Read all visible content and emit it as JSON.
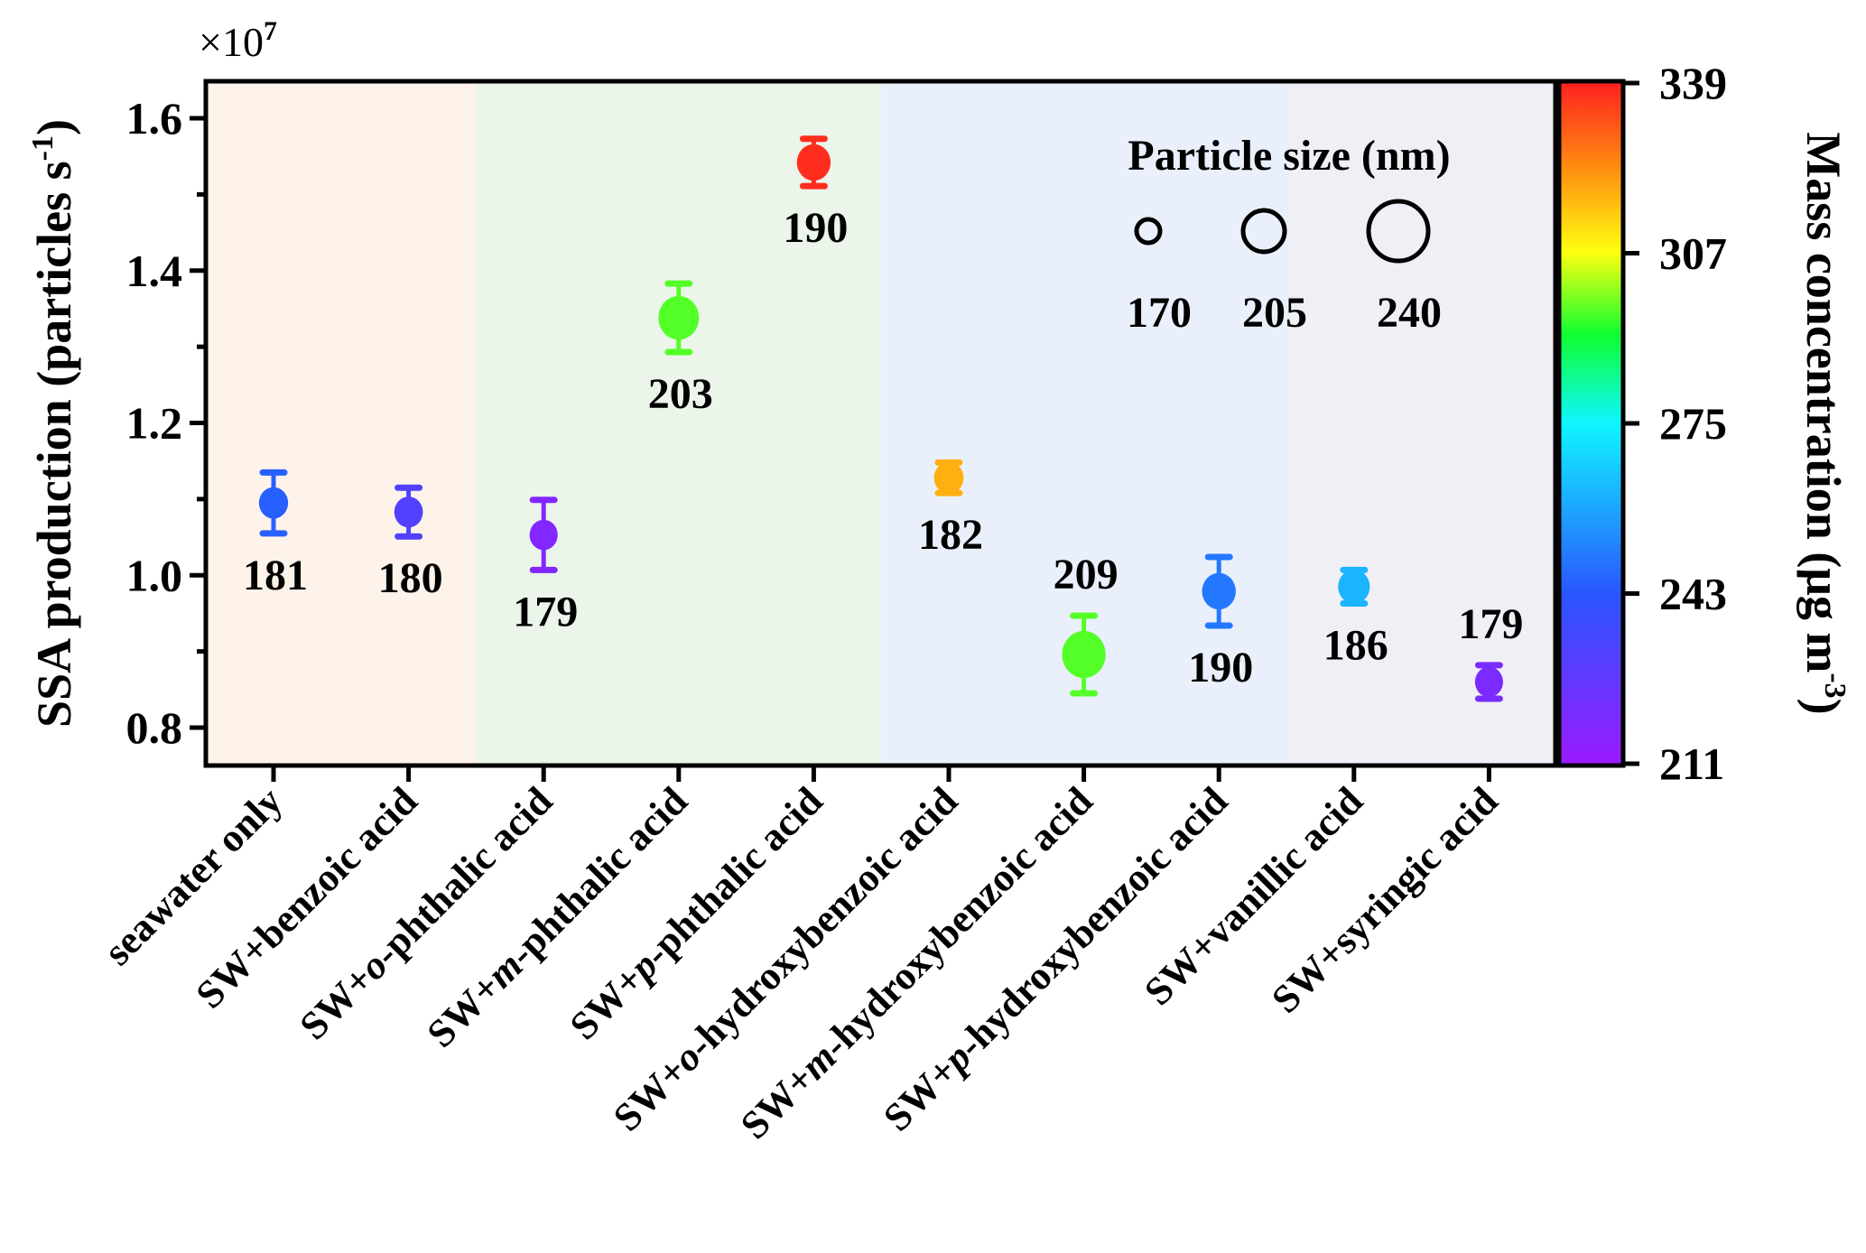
{
  "chart_data": {
    "type": "scatter",
    "ylabel": "SSA production (particles s",
    "ylabel_sup": "-1",
    "ylabel_end": ")",
    "y_multiplier": "×10",
    "y_multiplier_exp": "7",
    "ylim": [
      0.75,
      1.65
    ],
    "yticks": [
      0.8,
      1.0,
      1.2,
      1.4,
      1.6
    ],
    "ytick_labels": [
      "0.8",
      "1.0",
      "1.2",
      "1.4",
      "1.6"
    ],
    "categories": [
      "seawater only",
      "SW+benzoic acid",
      "SW+o-phthalic acid",
      "SW+m-phthalic acid",
      "SW+p-phthalic acid",
      "SW+o-hydroxybenzoic acid",
      "SW+m-hydroxybenzoic acid",
      "SW+p-hydroxybenzoic acid",
      "SW+vanillic acid",
      "SW+syringic acid"
    ],
    "values": [
      1.095,
      1.083,
      1.053,
      1.338,
      1.542,
      1.128,
      0.896,
      0.979,
      0.985,
      0.86
    ],
    "errors": [
      0.04,
      0.032,
      0.046,
      0.045,
      0.031,
      0.02,
      0.051,
      0.045,
      0.022,
      0.022
    ],
    "particle_size_nm": [
      181,
      180,
      179,
      203,
      190,
      182,
      209,
      190,
      186,
      179
    ],
    "size_labels": [
      "181",
      "180",
      "179",
      "203",
      "190",
      "182",
      "209",
      "190",
      "186",
      "179"
    ],
    "mass_concentration": [
      245,
      232,
      218,
      296,
      337,
      318,
      296,
      250,
      262,
      220
    ],
    "background_groups": [
      {
        "from": 0,
        "to": 1,
        "color": "#fdf3ea"
      },
      {
        "from": 2,
        "to": 4,
        "color": "#ebf5ea"
      },
      {
        "from": 5,
        "to": 7,
        "color": "#eaf0fb"
      },
      {
        "from": 8,
        "to": 9,
        "color": "#f1eff6"
      }
    ],
    "colorbar": {
      "label": "Mass concentration (μg m",
      "label_sup": "-3",
      "label_end": ")",
      "range": [
        211,
        339
      ],
      "ticks": [
        211,
        243,
        275,
        307,
        339
      ],
      "tick_labels": [
        "211",
        "243",
        "275",
        "307",
        "339"
      ],
      "colormap": "rainbow"
    },
    "size_legend": {
      "title": "Particle size (nm)",
      "sizes": [
        170,
        205,
        240
      ],
      "labels": [
        "170",
        "205",
        "240"
      ]
    }
  }
}
